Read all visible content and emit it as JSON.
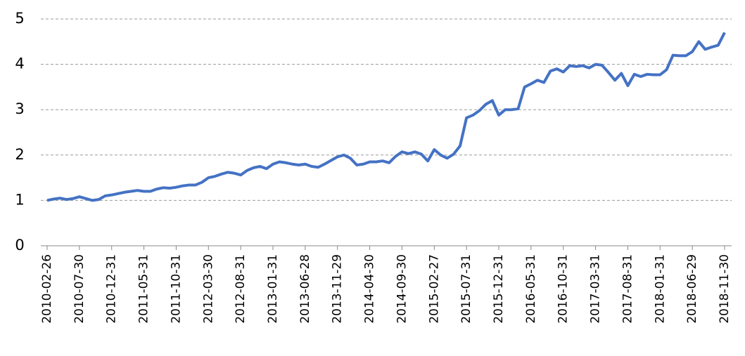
{
  "chart_data": {
    "type": "line",
    "categories": [
      "2010-02-26",
      null,
      null,
      null,
      null,
      "2010-07-30",
      null,
      null,
      null,
      null,
      "2010-12-31",
      null,
      null,
      null,
      null,
      "2011-05-31",
      null,
      null,
      null,
      null,
      "2011-10-31",
      null,
      null,
      null,
      null,
      "2012-03-30",
      null,
      null,
      null,
      null,
      "2012-08-31",
      null,
      null,
      null,
      null,
      "2013-01-31",
      null,
      null,
      null,
      null,
      "2013-06-28",
      null,
      null,
      null,
      null,
      "2013-11-29",
      null,
      null,
      null,
      null,
      "2014-04-30",
      null,
      null,
      null,
      null,
      "2014-09-30",
      null,
      null,
      null,
      null,
      "2015-02-27",
      null,
      null,
      null,
      null,
      "2015-07-31",
      null,
      null,
      null,
      null,
      "2015-12-31",
      null,
      null,
      null,
      null,
      "2016-05-31",
      null,
      null,
      null,
      null,
      "2016-10-31",
      null,
      null,
      null,
      null,
      "2017-03-31",
      null,
      null,
      null,
      null,
      "2017-08-31",
      null,
      null,
      null,
      null,
      "2018-01-31",
      null,
      null,
      null,
      null,
      "2018-06-29",
      null,
      null,
      null,
      null,
      "2018-11-30"
    ],
    "values": [
      1.0,
      1.03,
      1.05,
      1.02,
      1.04,
      1.08,
      1.04,
      1.0,
      1.02,
      1.1,
      1.12,
      1.15,
      1.18,
      1.2,
      1.22,
      1.2,
      1.2,
      1.25,
      1.28,
      1.27,
      1.29,
      1.32,
      1.34,
      1.34,
      1.4,
      1.5,
      1.53,
      1.58,
      1.62,
      1.6,
      1.56,
      1.66,
      1.72,
      1.75,
      1.7,
      1.8,
      1.85,
      1.83,
      1.8,
      1.78,
      1.8,
      1.75,
      1.73,
      1.8,
      1.88,
      1.96,
      2.0,
      1.93,
      1.78,
      1.8,
      1.85,
      1.85,
      1.87,
      1.83,
      1.97,
      2.07,
      2.03,
      2.07,
      2.02,
      1.87,
      2.12,
      2.0,
      1.93,
      2.02,
      2.2,
      2.82,
      2.88,
      2.98,
      3.12,
      3.2,
      2.88,
      3.0,
      3.0,
      3.02,
      3.5,
      3.57,
      3.65,
      3.6,
      3.85,
      3.9,
      3.83,
      3.97,
      3.95,
      3.97,
      3.92,
      4.0,
      3.98,
      3.82,
      3.65,
      3.8,
      3.53,
      3.78,
      3.73,
      3.78,
      3.77,
      3.77,
      3.88,
      4.2,
      4.19,
      4.19,
      4.28,
      4.5,
      4.33,
      4.38,
      4.42,
      4.7
    ],
    "color": "#4472c4",
    "ylim": [
      0,
      5
    ],
    "yticks": [
      0,
      1,
      2,
      3,
      4,
      5
    ],
    "grid": true
  }
}
